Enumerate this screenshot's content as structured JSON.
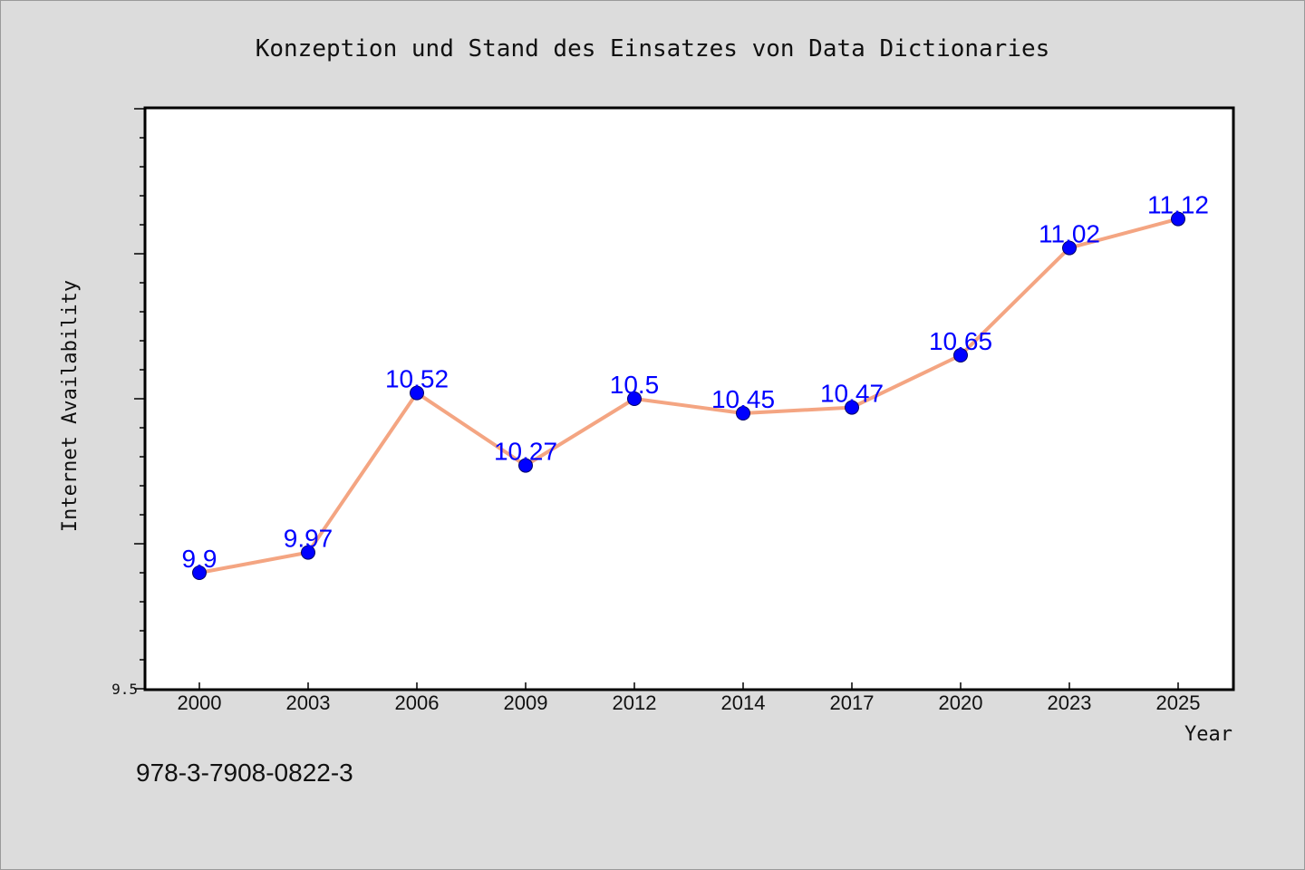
{
  "chart_data": {
    "type": "line",
    "title": "Konzeption und Stand des Einsatzes von Data Dictionaries",
    "xlabel": "Year",
    "ylabel": "Internet Availability",
    "categories": [
      "2000",
      "2003",
      "2006",
      "2009",
      "2012",
      "2014",
      "2017",
      "2020",
      "2023",
      "2025"
    ],
    "series": [
      {
        "values": [
          9.9,
          9.97,
          10.52,
          10.27,
          10.5,
          10.45,
          10.47,
          10.65,
          11.02,
          11.12
        ]
      }
    ],
    "data_labels": [
      "9.9",
      "9.97",
      "10.52",
      "10.27",
      "10.5",
      "10.45",
      "10.47",
      "10.65",
      "11.02",
      "11.12"
    ],
    "ylim": [
      9.5,
      11.5
    ],
    "yticks_labeled": [
      "9.5"
    ],
    "grid": false,
    "line_color": "#f4a582",
    "marker_color": "#0000ff",
    "label_color": "#0000ff"
  },
  "footer": {
    "isbn": "978-3-7908-0822-3"
  }
}
